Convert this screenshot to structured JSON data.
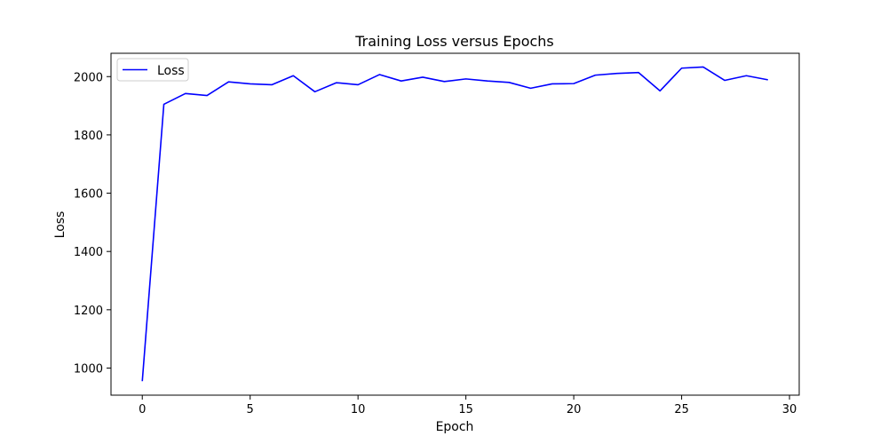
{
  "chart_data": {
    "type": "line",
    "title": "Training Loss versus Epochs",
    "xlabel": "Epoch",
    "ylabel": "Loss",
    "xlim": [
      -1.45,
      30.45
    ],
    "ylim": [
      907,
      2080
    ],
    "xticks": [
      0,
      5,
      10,
      15,
      20,
      25,
      30
    ],
    "yticks": [
      1000,
      1200,
      1400,
      1600,
      1800,
      2000
    ],
    "grid": false,
    "legend": {
      "position": "top-left"
    },
    "x": [
      0,
      1,
      2,
      3,
      4,
      5,
      6,
      7,
      8,
      9,
      10,
      11,
      12,
      13,
      14,
      15,
      16,
      17,
      18,
      19,
      20,
      21,
      22,
      23,
      24,
      25,
      26,
      27,
      28,
      29
    ],
    "series": [
      {
        "name": "Loss",
        "color": "#0000ff",
        "values": [
          955,
          1905,
          1942,
          1935,
          1982,
          1975,
          1972,
          2003,
          1948,
          1979,
          1972,
          2007,
          1985,
          1998,
          1983,
          1992,
          1985,
          1980,
          1960,
          1975,
          1976,
          2005,
          2011,
          2014,
          1951,
          2029,
          2033,
          1987,
          2003,
          1989
        ]
      }
    ]
  }
}
